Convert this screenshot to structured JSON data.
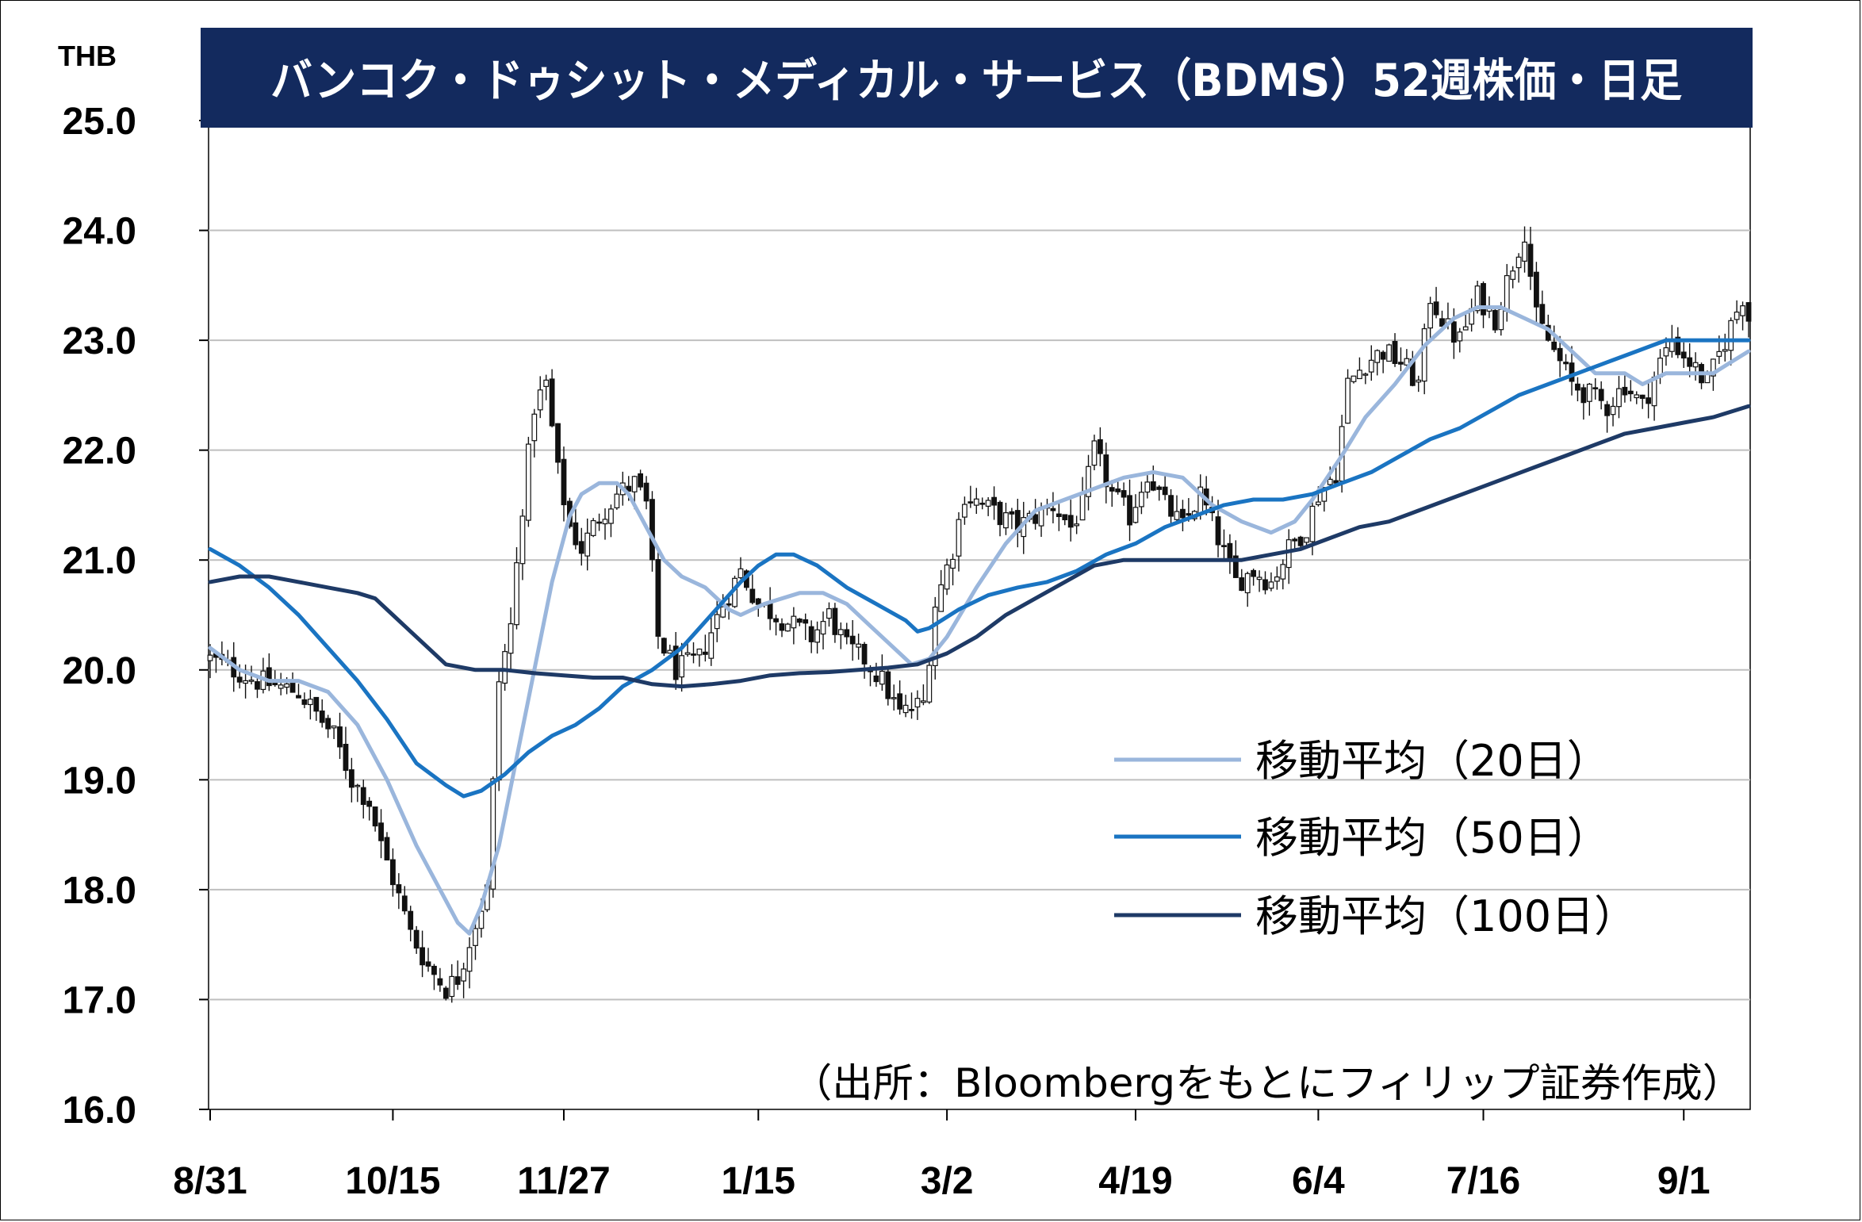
{
  "chart_data": {
    "type": "candlestick",
    "title": "バンコク・ドゥシット・メディカル・サービス（BDMS）52週株価・日足",
    "y_unit": "THB",
    "ylim": [
      16.0,
      25.0
    ],
    "y_ticks": [
      "16.0",
      "17.0",
      "18.0",
      "19.0",
      "20.0",
      "21.0",
      "22.0",
      "23.0",
      "24.0",
      "25.0"
    ],
    "x_tick_labels": [
      "8/31",
      "10/15",
      "11/27",
      "1/15",
      "3/2",
      "4/19",
      "6/4",
      "7/16",
      "9/1"
    ],
    "grid": true,
    "legend_position": "right-middle",
    "source_note": "（出所：Bloombergをもとにフィリップ証券作成）",
    "colors": {
      "title_bg": "#132a5e",
      "candle": "#111111",
      "ma20": "#9ab6dc",
      "ma50": "#1a74c2",
      "ma100": "#1e3a66",
      "grid": "#bfbfbf"
    },
    "close_path": [
      [
        0,
        20.1
      ],
      [
        8,
        19.9
      ],
      [
        15,
        19.8
      ],
      [
        18,
        19.6
      ],
      [
        21,
        19.4
      ],
      [
        24,
        19.0
      ],
      [
        27,
        18.8
      ],
      [
        29,
        18.4
      ],
      [
        31,
        18.1
      ],
      [
        34,
        17.6
      ],
      [
        37,
        17.3
      ],
      [
        40,
        17.1
      ],
      [
        42,
        17.2
      ],
      [
        45,
        17.7
      ],
      [
        47,
        18.0
      ],
      [
        49,
        19.9
      ],
      [
        51,
        20.4
      ],
      [
        53,
        21.5
      ],
      [
        55,
        22.4
      ],
      [
        57,
        22.6
      ],
      [
        59,
        21.8
      ],
      [
        61,
        21.3
      ],
      [
        63,
        21.1
      ],
      [
        66,
        21.4
      ],
      [
        69,
        21.6
      ],
      [
        72,
        21.7
      ],
      [
        74,
        21.5
      ],
      [
        76,
        20.3
      ],
      [
        79,
        20.0
      ],
      [
        83,
        20.1
      ],
      [
        87,
        20.6
      ],
      [
        90,
        20.9
      ],
      [
        93,
        20.6
      ],
      [
        96,
        20.5
      ],
      [
        99,
        20.4
      ],
      [
        102,
        20.3
      ],
      [
        105,
        20.5
      ],
      [
        108,
        20.2
      ],
      [
        111,
        20.1
      ],
      [
        114,
        19.9
      ],
      [
        117,
        19.6
      ],
      [
        121,
        19.7
      ],
      [
        123,
        20.6
      ],
      [
        126,
        21.1
      ],
      [
        128,
        21.6
      ],
      [
        131,
        21.5
      ],
      [
        134,
        21.4
      ],
      [
        137,
        21.3
      ],
      [
        140,
        21.4
      ],
      [
        143,
        21.5
      ],
      [
        146,
        21.3
      ],
      [
        148,
        21.5
      ],
      [
        150,
        22.0
      ],
      [
        153,
        21.6
      ],
      [
        156,
        21.4
      ],
      [
        159,
        21.8
      ],
      [
        162,
        21.5
      ],
      [
        165,
        21.3
      ],
      [
        168,
        21.6
      ],
      [
        171,
        21.2
      ],
      [
        174,
        20.8
      ],
      [
        177,
        20.9
      ],
      [
        180,
        20.8
      ],
      [
        183,
        21.1
      ],
      [
        186,
        21.3
      ],
      [
        188,
        21.6
      ],
      [
        191,
        21.8
      ],
      [
        193,
        22.6
      ],
      [
        196,
        22.8
      ],
      [
        199,
        22.9
      ],
      [
        202,
        22.8
      ],
      [
        205,
        22.6
      ],
      [
        207,
        23.4
      ],
      [
        210,
        23.1
      ],
      [
        212,
        23.0
      ],
      [
        215,
        23.4
      ],
      [
        218,
        23.2
      ],
      [
        221,
        23.7
      ],
      [
        223,
        24.0
      ],
      [
        225,
        23.2
      ],
      [
        228,
        22.9
      ],
      [
        231,
        22.6
      ],
      [
        234,
        22.5
      ],
      [
        237,
        22.4
      ],
      [
        240,
        22.6
      ],
      [
        243,
        22.4
      ],
      [
        246,
        22.8
      ],
      [
        248,
        23.0
      ],
      [
        251,
        22.8
      ],
      [
        254,
        22.6
      ],
      [
        257,
        23.0
      ],
      [
        260,
        23.4
      ],
      [
        261,
        23.2
      ]
    ],
    "series": [
      {
        "name": "移動平均（20日）",
        "color": "#9ab6dc",
        "points": [
          [
            0,
            20.2
          ],
          [
            5,
            20.0
          ],
          [
            10,
            19.9
          ],
          [
            15,
            19.9
          ],
          [
            20,
            19.8
          ],
          [
            25,
            19.5
          ],
          [
            30,
            19.0
          ],
          [
            35,
            18.4
          ],
          [
            40,
            17.9
          ],
          [
            42,
            17.7
          ],
          [
            44,
            17.6
          ],
          [
            46,
            17.85
          ],
          [
            49,
            18.4
          ],
          [
            52,
            19.2
          ],
          [
            55,
            20.0
          ],
          [
            58,
            20.8
          ],
          [
            61,
            21.4
          ],
          [
            63,
            21.6
          ],
          [
            66,
            21.7
          ],
          [
            69,
            21.7
          ],
          [
            71,
            21.6
          ],
          [
            74,
            21.3
          ],
          [
            77,
            21.0
          ],
          [
            80,
            20.85
          ],
          [
            84,
            20.75
          ],
          [
            88,
            20.55
          ],
          [
            90,
            20.5
          ],
          [
            94,
            20.6
          ],
          [
            97,
            20.65
          ],
          [
            100,
            20.7
          ],
          [
            104,
            20.7
          ],
          [
            108,
            20.6
          ],
          [
            112,
            20.4
          ],
          [
            116,
            20.2
          ],
          [
            119,
            20.05
          ],
          [
            122,
            20.1
          ],
          [
            125,
            20.3
          ],
          [
            130,
            20.75
          ],
          [
            135,
            21.15
          ],
          [
            140,
            21.45
          ],
          [
            145,
            21.55
          ],
          [
            150,
            21.65
          ],
          [
            155,
            21.75
          ],
          [
            160,
            21.8
          ],
          [
            165,
            21.75
          ],
          [
            170,
            21.5
          ],
          [
            175,
            21.35
          ],
          [
            180,
            21.25
          ],
          [
            184,
            21.35
          ],
          [
            187,
            21.55
          ],
          [
            192,
            21.95
          ],
          [
            196,
            22.3
          ],
          [
            201,
            22.6
          ],
          [
            206,
            22.95
          ],
          [
            211,
            23.2
          ],
          [
            215,
            23.3
          ],
          [
            219,
            23.3
          ],
          [
            223,
            23.2
          ],
          [
            227,
            23.1
          ],
          [
            231,
            22.9
          ],
          [
            235,
            22.7
          ],
          [
            240,
            22.7
          ],
          [
            243,
            22.6
          ],
          [
            247,
            22.7
          ],
          [
            251,
            22.7
          ],
          [
            255,
            22.7
          ],
          [
            258,
            22.8
          ],
          [
            261,
            22.9
          ]
        ]
      },
      {
        "name": "移動平均（50日）",
        "color": "#1a74c2",
        "points": [
          [
            0,
            21.1
          ],
          [
            5,
            20.95
          ],
          [
            10,
            20.75
          ],
          [
            15,
            20.5
          ],
          [
            20,
            20.2
          ],
          [
            25,
            19.9
          ],
          [
            30,
            19.55
          ],
          [
            35,
            19.15
          ],
          [
            40,
            18.95
          ],
          [
            43,
            18.85
          ],
          [
            46,
            18.9
          ],
          [
            50,
            19.05
          ],
          [
            54,
            19.25
          ],
          [
            58,
            19.4
          ],
          [
            62,
            19.5
          ],
          [
            66,
            19.65
          ],
          [
            70,
            19.85
          ],
          [
            75,
            20.0
          ],
          [
            80,
            20.2
          ],
          [
            85,
            20.5
          ],
          [
            90,
            20.8
          ],
          [
            93,
            20.95
          ],
          [
            96,
            21.05
          ],
          [
            99,
            21.05
          ],
          [
            103,
            20.95
          ],
          [
            108,
            20.75
          ],
          [
            113,
            20.6
          ],
          [
            118,
            20.45
          ],
          [
            120,
            20.35
          ],
          [
            122,
            20.38
          ],
          [
            127,
            20.55
          ],
          [
            132,
            20.68
          ],
          [
            137,
            20.75
          ],
          [
            142,
            20.8
          ],
          [
            147,
            20.9
          ],
          [
            152,
            21.05
          ],
          [
            157,
            21.15
          ],
          [
            162,
            21.3
          ],
          [
            167,
            21.4
          ],
          [
            172,
            21.5
          ],
          [
            177,
            21.55
          ],
          [
            182,
            21.55
          ],
          [
            187,
            21.6
          ],
          [
            192,
            21.7
          ],
          [
            197,
            21.8
          ],
          [
            202,
            21.95
          ],
          [
            207,
            22.1
          ],
          [
            212,
            22.2
          ],
          [
            217,
            22.35
          ],
          [
            222,
            22.5
          ],
          [
            227,
            22.6
          ],
          [
            232,
            22.7
          ],
          [
            237,
            22.8
          ],
          [
            242,
            22.9
          ],
          [
            247,
            23.0
          ],
          [
            252,
            23.0
          ],
          [
            257,
            23.0
          ],
          [
            261,
            23.0
          ]
        ]
      },
      {
        "name": "移動平均（100日）",
        "color": "#1e3a66",
        "points": [
          [
            0,
            20.8
          ],
          [
            5,
            20.85
          ],
          [
            10,
            20.85
          ],
          [
            15,
            20.8
          ],
          [
            20,
            20.75
          ],
          [
            25,
            20.7
          ],
          [
            28,
            20.65
          ],
          [
            31,
            20.5
          ],
          [
            34,
            20.35
          ],
          [
            37,
            20.2
          ],
          [
            40,
            20.05
          ],
          [
            45,
            20.0
          ],
          [
            50,
            20.0
          ],
          [
            55,
            19.97
          ],
          [
            60,
            19.95
          ],
          [
            65,
            19.93
          ],
          [
            70,
            19.93
          ],
          [
            75,
            19.87
          ],
          [
            80,
            19.85
          ],
          [
            85,
            19.87
          ],
          [
            90,
            19.9
          ],
          [
            95,
            19.95
          ],
          [
            100,
            19.97
          ],
          [
            105,
            19.98
          ],
          [
            110,
            20.0
          ],
          [
            115,
            20.02
          ],
          [
            120,
            20.05
          ],
          [
            125,
            20.15
          ],
          [
            130,
            20.3
          ],
          [
            135,
            20.5
          ],
          [
            140,
            20.65
          ],
          [
            145,
            20.8
          ],
          [
            150,
            20.95
          ],
          [
            155,
            21.0
          ],
          [
            160,
            21.0
          ],
          [
            165,
            21.0
          ],
          [
            170,
            21.0
          ],
          [
            175,
            21.0
          ],
          [
            180,
            21.05
          ],
          [
            185,
            21.1
          ],
          [
            190,
            21.2
          ],
          [
            195,
            21.3
          ],
          [
            200,
            21.35
          ],
          [
            205,
            21.45
          ],
          [
            210,
            21.55
          ],
          [
            215,
            21.65
          ],
          [
            220,
            21.75
          ],
          [
            225,
            21.85
          ],
          [
            230,
            21.95
          ],
          [
            235,
            22.05
          ],
          [
            240,
            22.15
          ],
          [
            245,
            22.2
          ],
          [
            250,
            22.25
          ],
          [
            255,
            22.3
          ],
          [
            261,
            22.4
          ]
        ]
      }
    ]
  }
}
